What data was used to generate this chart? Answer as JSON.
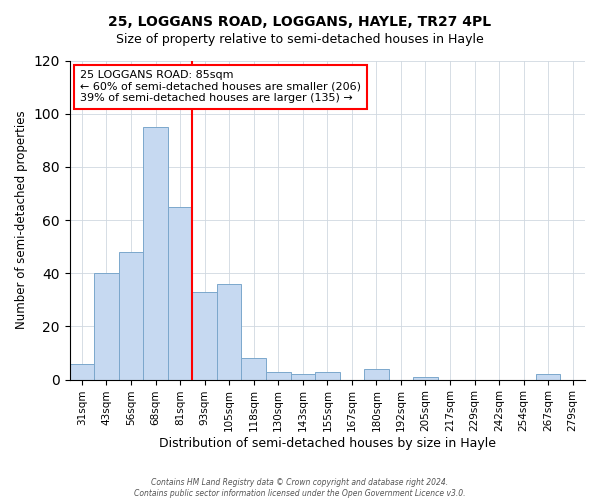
{
  "title": "25, LOGGANS ROAD, LOGGANS, HAYLE, TR27 4PL",
  "subtitle": "Size of property relative to semi-detached houses in Hayle",
  "xlabel": "Distribution of semi-detached houses by size in Hayle",
  "ylabel": "Number of semi-detached properties",
  "bin_labels": [
    "31sqm",
    "43sqm",
    "56sqm",
    "68sqm",
    "81sqm",
    "93sqm",
    "105sqm",
    "118sqm",
    "130sqm",
    "143sqm",
    "155sqm",
    "167sqm",
    "180sqm",
    "192sqm",
    "205sqm",
    "217sqm",
    "229sqm",
    "242sqm",
    "254sqm",
    "267sqm",
    "279sqm"
  ],
  "bar_heights": [
    6,
    40,
    48,
    95,
    65,
    33,
    36,
    8,
    3,
    2,
    3,
    0,
    4,
    0,
    1,
    0,
    0,
    0,
    0,
    2,
    0
  ],
  "bar_color": "#c6d9f1",
  "bar_edge_color": "#7ba7cc",
  "vline_x": 5.0,
  "vline_color": "red",
  "annotation_title": "25 LOGGANS ROAD: 85sqm",
  "annotation_line1": "← 60% of semi-detached houses are smaller (206)",
  "annotation_line2": "39% of semi-detached houses are larger (135) →",
  "annotation_box_color": "white",
  "annotation_box_edge": "red",
  "ylim": [
    0,
    120
  ],
  "yticks": [
    0,
    20,
    40,
    60,
    80,
    100,
    120
  ],
  "footer1": "Contains HM Land Registry data © Crown copyright and database right 2024.",
  "footer2": "Contains public sector information licensed under the Open Government Licence v3.0."
}
